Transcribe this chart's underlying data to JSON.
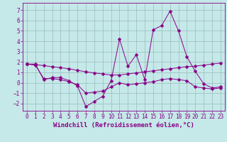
{
  "xlabel": "Windchill (Refroidissement éolien,°C)",
  "xlim": [
    -0.5,
    23.5
  ],
  "ylim": [
    -2.7,
    7.7
  ],
  "yticks": [
    -2,
    -1,
    0,
    1,
    2,
    3,
    4,
    5,
    6,
    7
  ],
  "xticks": [
    0,
    1,
    2,
    3,
    4,
    5,
    6,
    7,
    8,
    9,
    10,
    11,
    12,
    13,
    14,
    15,
    16,
    17,
    18,
    19,
    20,
    21,
    22,
    23
  ],
  "bg_color": "#c5e8e8",
  "line_color": "#880088",
  "line1_y": [
    1.8,
    1.8,
    0.3,
    0.5,
    0.5,
    0.2,
    -0.3,
    -2.3,
    -1.8,
    -1.3,
    0.2,
    4.2,
    1.6,
    2.7,
    0.3,
    5.1,
    5.5,
    6.9,
    5.0,
    2.5,
    1.1,
    -0.1,
    -0.5,
    -0.4
  ],
  "line2_y": [
    1.8,
    1.75,
    1.65,
    1.55,
    1.45,
    1.35,
    1.2,
    1.05,
    0.95,
    0.85,
    0.75,
    0.75,
    0.85,
    0.95,
    1.05,
    1.15,
    1.25,
    1.35,
    1.45,
    1.55,
    1.6,
    1.7,
    1.8,
    1.9
  ],
  "line3_y": [
    1.8,
    1.7,
    0.4,
    0.4,
    0.3,
    0.1,
    -0.2,
    -1.0,
    -0.9,
    -0.8,
    -0.4,
    0.0,
    -0.2,
    -0.1,
    0.0,
    0.1,
    0.3,
    0.4,
    0.3,
    0.2,
    -0.4,
    -0.5,
    -0.6,
    -0.5
  ],
  "grid_color": "#99bbbb",
  "marker": "D",
  "marker_size": 2.5,
  "font_family": "monospace",
  "xlabel_fontsize": 6.5,
  "tick_fontsize": 5.5
}
